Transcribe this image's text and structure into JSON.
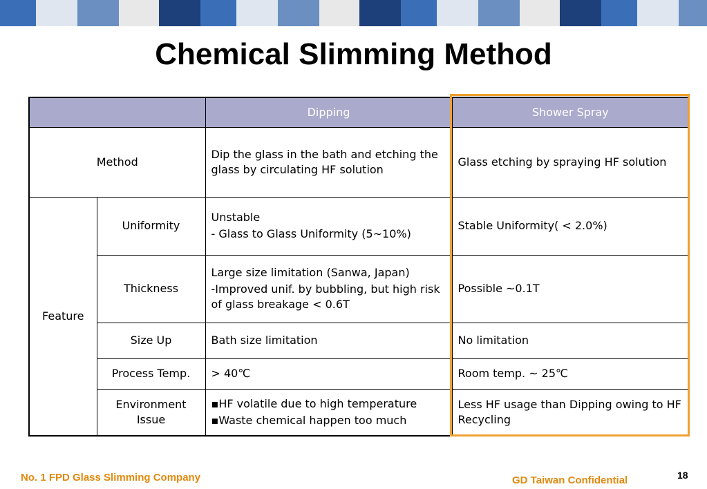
{
  "title": "Chemical Slimming Method",
  "table": {
    "columns": [
      "Dipping",
      "Shower Spray"
    ],
    "rows": [
      {
        "label": "Method",
        "cells": [
          [
            "Dip the glass in the bath and etching the glass by circulating HF solution"
          ],
          [
            "Glass etching by spraying HF solution"
          ]
        ]
      }
    ],
    "group": {
      "label": "Feature",
      "rows": [
        {
          "label": "Uniformity",
          "cells": [
            [
              "Unstable",
              "- Glass to Glass Uniformity (5~10%)"
            ],
            [
              "Stable Uniformity( < 2.0%)"
            ]
          ]
        },
        {
          "label": "Thickness",
          "cells": [
            [
              "Large size limitation (Sanwa, Japan)",
              "-Improved unif. by bubbling, but high risk of glass breakage < 0.6T"
            ],
            [
              "Possible ~0.1T"
            ]
          ]
        },
        {
          "label": "Size Up",
          "cells": [
            [
              "Bath size limitation"
            ],
            [
              "No limitation"
            ]
          ]
        },
        {
          "label": "Process Temp.",
          "cells": [
            [
              "> 40℃"
            ],
            [
              "Room temp. ~ 25℃"
            ]
          ]
        },
        {
          "label": "Environment Issue",
          "cells": [
            [
              "▪HF volatile due to high temperature",
              "▪Waste chemical happen too much"
            ],
            [
              "Less HF usage than Dipping owing to HF Recycling"
            ]
          ]
        }
      ]
    }
  },
  "footer": {
    "company": "No. 1 FPD Glass Slimming Company",
    "confidential": "GD Taiwan Confidential",
    "page": "18"
  }
}
